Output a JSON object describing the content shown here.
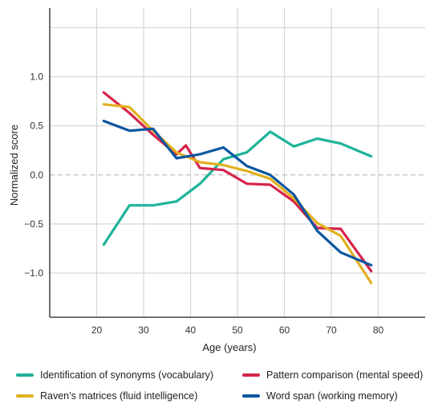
{
  "chart_data": {
    "type": "line",
    "title": "",
    "xlabel": "Age (years)",
    "ylabel": "Normalized score",
    "xlim": [
      10,
      90
    ],
    "ylim": [
      -1.45,
      1.7
    ],
    "xticks": [
      20,
      30,
      40,
      50,
      60,
      70,
      80
    ],
    "yticks": [
      1.0,
      0.5,
      0.0,
      -0.5,
      -1.0
    ],
    "xtick_labels": [
      "20",
      "30",
      "40",
      "50",
      "60",
      "70",
      "80"
    ],
    "ytick_labels": [
      "1.0",
      "0.5",
      "0.0",
      "−0.5",
      "−1.0"
    ],
    "grid": true,
    "zero_line": "dashed",
    "legend_position": "bottom",
    "series": [
      {
        "name": "Identification of synonyms (vocabulary)",
        "color": "#1db39a",
        "x": [
          21.5,
          27,
          32,
          37,
          42,
          47,
          52,
          57,
          62,
          67,
          72,
          78.5
        ],
        "y": [
          -0.71,
          -0.31,
          -0.31,
          -0.27,
          -0.09,
          0.16,
          0.23,
          0.44,
          0.29,
          0.37,
          0.32,
          0.19
        ]
      },
      {
        "name": "Pattern comparison (mental speed)",
        "color": "#d6234a",
        "x": [
          21.5,
          27,
          32,
          37,
          39,
          42,
          47,
          52,
          57,
          62,
          67,
          72,
          78.5
        ],
        "y": [
          0.84,
          0.63,
          0.41,
          0.21,
          0.3,
          0.07,
          0.05,
          -0.09,
          -0.1,
          -0.27,
          -0.54,
          -0.55,
          -0.98
        ]
      },
      {
        "name": "Raven’s matrices (fluid intelligence)",
        "color": "#e2b01f",
        "x": [
          21.5,
          27,
          32,
          37,
          42,
          47,
          52,
          57,
          62,
          67,
          72,
          78.5
        ],
        "y": [
          0.72,
          0.69,
          0.45,
          0.23,
          0.13,
          0.1,
          0.04,
          -0.04,
          -0.24,
          -0.49,
          -0.62,
          -1.1
        ]
      },
      {
        "name": "Word span (working memory)",
        "color": "#0b56a0",
        "x": [
          21.5,
          27,
          32,
          37,
          42,
          47,
          52,
          57,
          62,
          67,
          72,
          78.5
        ],
        "y": [
          0.55,
          0.45,
          0.47,
          0.17,
          0.21,
          0.28,
          0.09,
          0.0,
          -0.2,
          -0.57,
          -0.79,
          -0.92
        ]
      }
    ]
  }
}
